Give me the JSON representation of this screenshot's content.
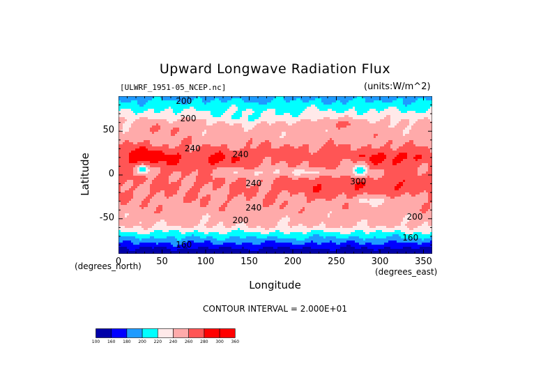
{
  "chart_data": {
    "type": "heatmap",
    "title": "Upward Longwave Radiation Flux",
    "file_label": "[ULWRF_1951-05_NCEP.nc]",
    "units_label": "(units:W/m^2)",
    "xlabel": "Longitude",
    "ylabel": "Latitude",
    "x_unit_label": "(degrees_east)",
    "y_unit_label": "(degrees_north)",
    "xlim": [
      0,
      360
    ],
    "ylim": [
      -90,
      90
    ],
    "x_ticks": [
      0,
      50,
      100,
      150,
      200,
      250,
      300,
      350
    ],
    "y_ticks": [
      50,
      0,
      -50
    ],
    "contour_interval_text": "CONTOUR INTERVAL = 2.000E+01",
    "levels": [
      100,
      160,
      180,
      200,
      220,
      240,
      260,
      280,
      300,
      360
    ],
    "level_labels": [
      "100",
      "160",
      "180",
      "200",
      "220",
      "240",
      "260",
      "280",
      "300",
      "360"
    ],
    "colors": [
      "#0000a8",
      "#0000ff",
      "#1e9bff",
      "#00ffff",
      "#ffe9e9",
      "#ffaaaa",
      "#ff5555",
      "#ff0000",
      "#ff0000"
    ],
    "contour_labels": [
      {
        "text": "200",
        "lon": 75,
        "lat": 84
      },
      {
        "text": "200",
        "lon": 80,
        "lat": 64
      },
      {
        "text": "240",
        "lon": 85,
        "lat": 30
      },
      {
        "text": "240",
        "lon": 140,
        "lat": 23
      },
      {
        "text": "240",
        "lon": 155,
        "lat": -10
      },
      {
        "text": "240",
        "lon": 155,
        "lat": -38
      },
      {
        "text": "200",
        "lon": 140,
        "lat": -52
      },
      {
        "text": "300",
        "lon": 275,
        "lat": -8
      },
      {
        "text": "200",
        "lon": 340,
        "lat": -48
      },
      {
        "text": "160",
        "lon": 335,
        "lat": -72
      },
      {
        "text": "160",
        "lon": 75,
        "lat": -80
      }
    ]
  }
}
